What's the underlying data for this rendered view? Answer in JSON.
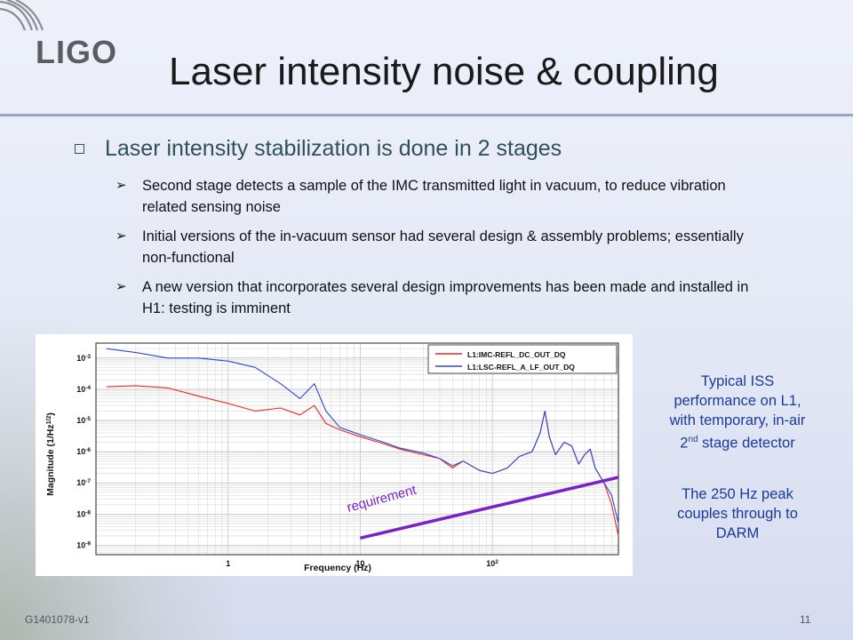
{
  "logo": "LIGO",
  "title": "Laser intensity noise & coupling",
  "heading": "Laser intensity stabilization  is done in 2 stages",
  "bullets": [
    "Second stage detects a sample of the IMC transmitted light in vacuum, to reduce vibration related sensing noise",
    "Initial versions of the in-vacuum sensor had several design & assembly problems; essentially non-functional",
    "A new version that incorporates several design improvements has been made and installed in H1: testing is imminent"
  ],
  "caption1": {
    "line1": "Typical ISS",
    "line2": "performance on L1,",
    "line3": "with temporary, in-air",
    "line4_sup": "nd",
    "line4_pre": "2",
    "line4_post": " stage detector"
  },
  "caption2": {
    "line1": "The 250 Hz peak",
    "line2": "couples through to",
    "line3": "DARM"
  },
  "footer": {
    "doc_id": "G1401078-v1",
    "page": "11"
  },
  "colors": {
    "title": "#1a1a1a",
    "heading": "#2f4f5f",
    "caption": "#1a3a9a",
    "requirement": "#7a22c8",
    "series_red": "#e8281e",
    "series_blue": "#2d47d6"
  },
  "chart_data": {
    "type": "line",
    "xlabel": "Frequency (Hz)",
    "ylabel": "Magnitude (1/Hz^1/2)",
    "xscale": "log",
    "yscale": "log",
    "xlim": [
      0.1,
      900
    ],
    "ylim": [
      5e-10,
      0.003
    ],
    "x_ticks": [
      "1",
      "10",
      "10^2"
    ],
    "y_ticks": [
      "10^-3",
      "10^-4",
      "10^-5",
      "10^-6",
      "10^-7",
      "10^-8",
      "10^-9"
    ],
    "grid": true,
    "legend_position": "top-right",
    "series": [
      {
        "name": "L1:IMC-REFL_DC_OUT_DQ",
        "color": "#e8281e",
        "x": [
          0.12,
          0.2,
          0.35,
          0.6,
          1,
          1.6,
          2.5,
          3.5,
          4.5,
          5.5,
          7,
          10,
          15,
          20,
          30,
          40,
          50,
          60,
          80,
          100,
          130,
          160,
          200,
          230,
          250,
          270,
          300,
          350,
          400,
          450,
          500,
          550,
          600,
          700,
          800,
          900
        ],
        "y": [
          0.00012,
          0.00013,
          0.00011,
          6e-05,
          3.5e-05,
          2e-05,
          2.5e-05,
          1.5e-05,
          3e-05,
          8e-06,
          5e-06,
          3e-06,
          1.8e-06,
          1.2e-06,
          8e-07,
          6e-07,
          3e-07,
          5e-07,
          2.5e-07,
          2e-07,
          3e-07,
          7e-07,
          1e-06,
          4e-06,
          2e-05,
          3e-06,
          8e-07,
          2e-06,
          1.5e-06,
          4e-07,
          8e-07,
          1.2e-06,
          3e-07,
          1e-07,
          2e-08,
          2e-09
        ]
      },
      {
        "name": "L1:LSC-REFL_A_LF_OUT_DQ",
        "color": "#2d47d6",
        "x": [
          0.12,
          0.2,
          0.35,
          0.6,
          1,
          1.6,
          2.5,
          3.5,
          4.5,
          5.5,
          7,
          10,
          15,
          20,
          30,
          40,
          50,
          60,
          80,
          100,
          130,
          160,
          200,
          230,
          250,
          270,
          300,
          350,
          400,
          450,
          500,
          550,
          600,
          700,
          800,
          900
        ],
        "y": [
          0.002,
          0.0015,
          0.001,
          0.001,
          0.0008,
          0.0005,
          0.00015,
          5e-05,
          0.00015,
          2e-05,
          6e-06,
          3.5e-06,
          2e-06,
          1.3e-06,
          9e-07,
          6e-07,
          3.5e-07,
          5e-07,
          2.5e-07,
          2e-07,
          3e-07,
          7e-07,
          1e-06,
          4e-06,
          2e-05,
          3e-06,
          8e-07,
          2e-06,
          1.5e-06,
          4e-07,
          8e-07,
          1.2e-06,
          3e-07,
          1e-07,
          4e-08,
          5e-09
        ]
      },
      {
        "name": "requirement",
        "color": "#7a22c8",
        "x": [
          10,
          900
        ],
        "y": [
          1.7e-09,
          1.5e-07
        ]
      }
    ]
  }
}
